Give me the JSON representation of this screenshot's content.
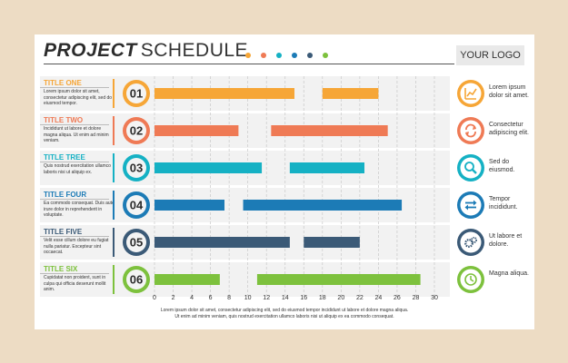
{
  "header": {
    "title_bold": "PROJECT",
    "title_light": "SCHEDULE",
    "logo": "YOUR LOGO",
    "dot_colors": [
      "#f6a637",
      "#ef7a55",
      "#15b1c4",
      "#1c7bb6",
      "#3b5a77",
      "#7dc13d"
    ]
  },
  "rows": [
    {
      "title": "TITLE ONE",
      "desc": "Lorem ipsum dolor sit amet, consectetur adipiscing elit, sed do eiusmod tempor.",
      "color": "#f6a637",
      "number": "01",
      "right_text": "Lorem ipsum dolor sit amet.",
      "icon": "chart-growth-icon"
    },
    {
      "title": "TITLE TWO",
      "desc": "Incididunt ut labore et dolore magna aliqua. Ut enim ad minim veniam.",
      "color": "#ef7a55",
      "number": "02",
      "right_text": "Consectetur adipiscing elit.",
      "icon": "refresh-icon"
    },
    {
      "title": "TITLE TREE",
      "desc": "Quis nostrud exercitation ullamco laboris nisi ut aliquip ex.",
      "color": "#15b1c4",
      "number": "03",
      "right_text": "Sed do eiusmod.",
      "icon": "search-icon"
    },
    {
      "title": "TITLE FOUR",
      "desc": "Ea commodo consequat. Duis aute irure dolor in reprehenderit in voluptate.",
      "color": "#1c7bb6",
      "number": "04",
      "right_text": "Tempor incididunt.",
      "icon": "arrows-exchange-icon"
    },
    {
      "title": "TITLE FIVE",
      "desc": "Velit esse cillum dolore eu fugiat nulla pariatur. Excepteur sint occaecat.",
      "color": "#3b5a77",
      "number": "05",
      "right_text": "Ut labore et dolore.",
      "icon": "gears-icon"
    },
    {
      "title": "TITLE SIX",
      "desc": "Cupidatat non proident, sunt in culpa qui officia deserunt mollit anim.",
      "color": "#7dc13d",
      "number": "06",
      "right_text": "Magna aliqua.",
      "icon": "clock-icon"
    }
  ],
  "footer": {
    "line1": "Lorem ipsum dolor sit amet, consectetur adipiscing elit, sed do eiusmod tempor incididunt ut labore et dolore magna aliqua.",
    "line2": "Ut enim ad minim veniam, quis nostrud exercitation ullamco laboris nisi ut aliquip ex ea commodo consequat."
  },
  "chart_data": {
    "type": "bar",
    "orientation": "horizontal-gantt",
    "xlim": [
      0,
      30
    ],
    "x_ticks": [
      0,
      2,
      4,
      6,
      8,
      10,
      12,
      14,
      16,
      18,
      20,
      22,
      24,
      26,
      28,
      30
    ],
    "grid": "vertical dashed",
    "series": [
      {
        "name": "TITLE ONE",
        "segments": [
          [
            0,
            15
          ],
          [
            18,
            24
          ]
        ]
      },
      {
        "name": "TITLE TWO",
        "segments": [
          [
            0,
            9
          ],
          [
            12.5,
            25
          ]
        ]
      },
      {
        "name": "TITLE TREE",
        "segments": [
          [
            0,
            11.5
          ],
          [
            14.5,
            22.5
          ]
        ]
      },
      {
        "name": "TITLE FOUR",
        "segments": [
          [
            0,
            7.5
          ],
          [
            9.5,
            26.5
          ]
        ]
      },
      {
        "name": "TITLE FIVE",
        "segments": [
          [
            0,
            14.5
          ],
          [
            16,
            22
          ]
        ]
      },
      {
        "name": "TITLE SIX",
        "segments": [
          [
            0,
            7
          ],
          [
            11,
            28.5
          ]
        ]
      }
    ]
  }
}
